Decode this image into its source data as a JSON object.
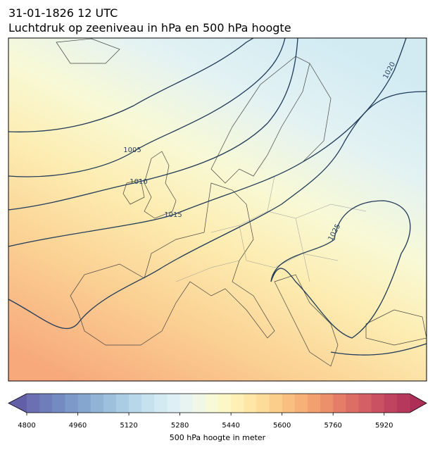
{
  "title": "31-01-1826 12 UTC",
  "subtitle": "Luchtdruk op zeeniveau in hPa en 500 hPa hoogte",
  "isobars": [
    {
      "label": "1005"
    },
    {
      "label": "1010"
    },
    {
      "label": "1015"
    },
    {
      "label": "1020"
    },
    {
      "label": "1025"
    }
  ],
  "colorbar": {
    "label": "500 hPa hoogte in meter",
    "range": [
      4800,
      6000
    ],
    "ticks": [
      4800,
      4960,
      5120,
      5280,
      5440,
      5600,
      5760,
      5920
    ],
    "colors": [
      "#6d6fb3",
      "#6f7dbb",
      "#748bc2",
      "#7c99c9",
      "#85a6cf",
      "#90b3d6",
      "#9dc1dd",
      "#aacde3",
      "#b8d8e9",
      "#c6e2ee",
      "#d3eaf3",
      "#def0f5",
      "#e8f4f2",
      "#f0f7e6",
      "#f7f9d7",
      "#fcf8c6",
      "#feefb5",
      "#fee6a6",
      "#fddb98",
      "#fcce8b",
      "#f9bf80",
      "#f6b078",
      "#f2a070",
      "#ec8f6b",
      "#e57e68",
      "#dd6e66",
      "#d45f64",
      "#ca5162",
      "#c0445f",
      "#b6385c"
    ],
    "under_color": "#625fa8",
    "over_color": "#ad2f58"
  }
}
